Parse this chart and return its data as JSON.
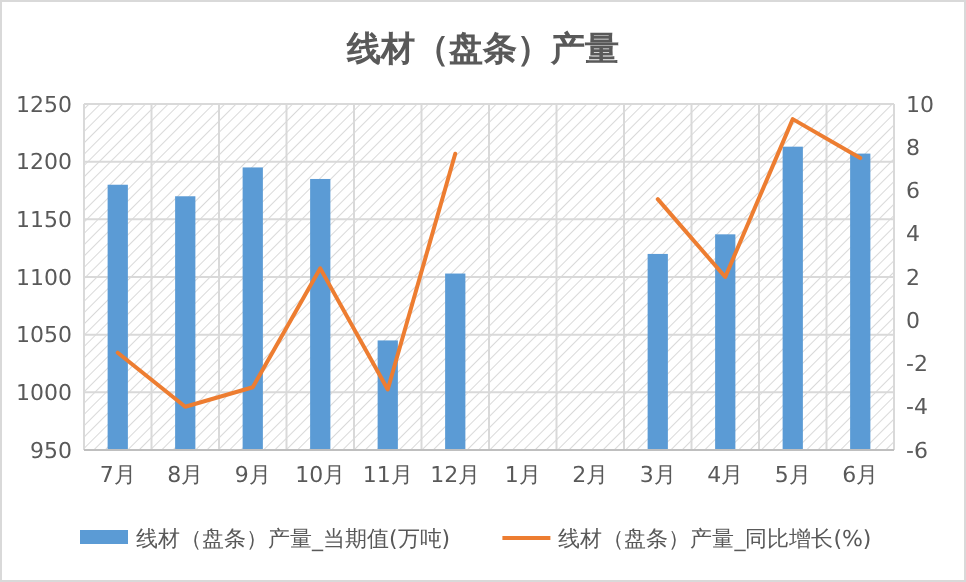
{
  "chart_data": {
    "type": "bar",
    "title": "线材（盘条）产量",
    "categories": [
      "7月",
      "8月",
      "9月",
      "10月",
      "11月",
      "12月",
      "1月",
      "2月",
      "3月",
      "4月",
      "5月",
      "6月"
    ],
    "series": [
      {
        "name": "线材（盘条）产量_当期值(万吨)",
        "color": "#5b9bd5",
        "values": [
          1180,
          1170,
          1195,
          1185,
          1045,
          1103,
          null,
          null,
          1120,
          1137,
          1213,
          1207
        ]
      },
      {
        "name": "线材（盘条）产量_同比增长(%)",
        "type": "line",
        "axis": "y2",
        "color": "#ed7d31",
        "values": [
          -1.5,
          -4,
          -3.1,
          2.4,
          -3.2,
          7.7,
          null,
          null,
          5.6,
          2.0,
          9.3,
          7.5
        ]
      }
    ],
    "ylim": [
      950,
      1250
    ],
    "yticks": [
      950,
      1000,
      1050,
      1100,
      1150,
      1200,
      1250
    ],
    "y2lim": [
      -6,
      10
    ],
    "y2ticks": [
      -6,
      -4,
      -2,
      0,
      2,
      4,
      6,
      8,
      10
    ],
    "grid": true,
    "legend": "bottom"
  }
}
